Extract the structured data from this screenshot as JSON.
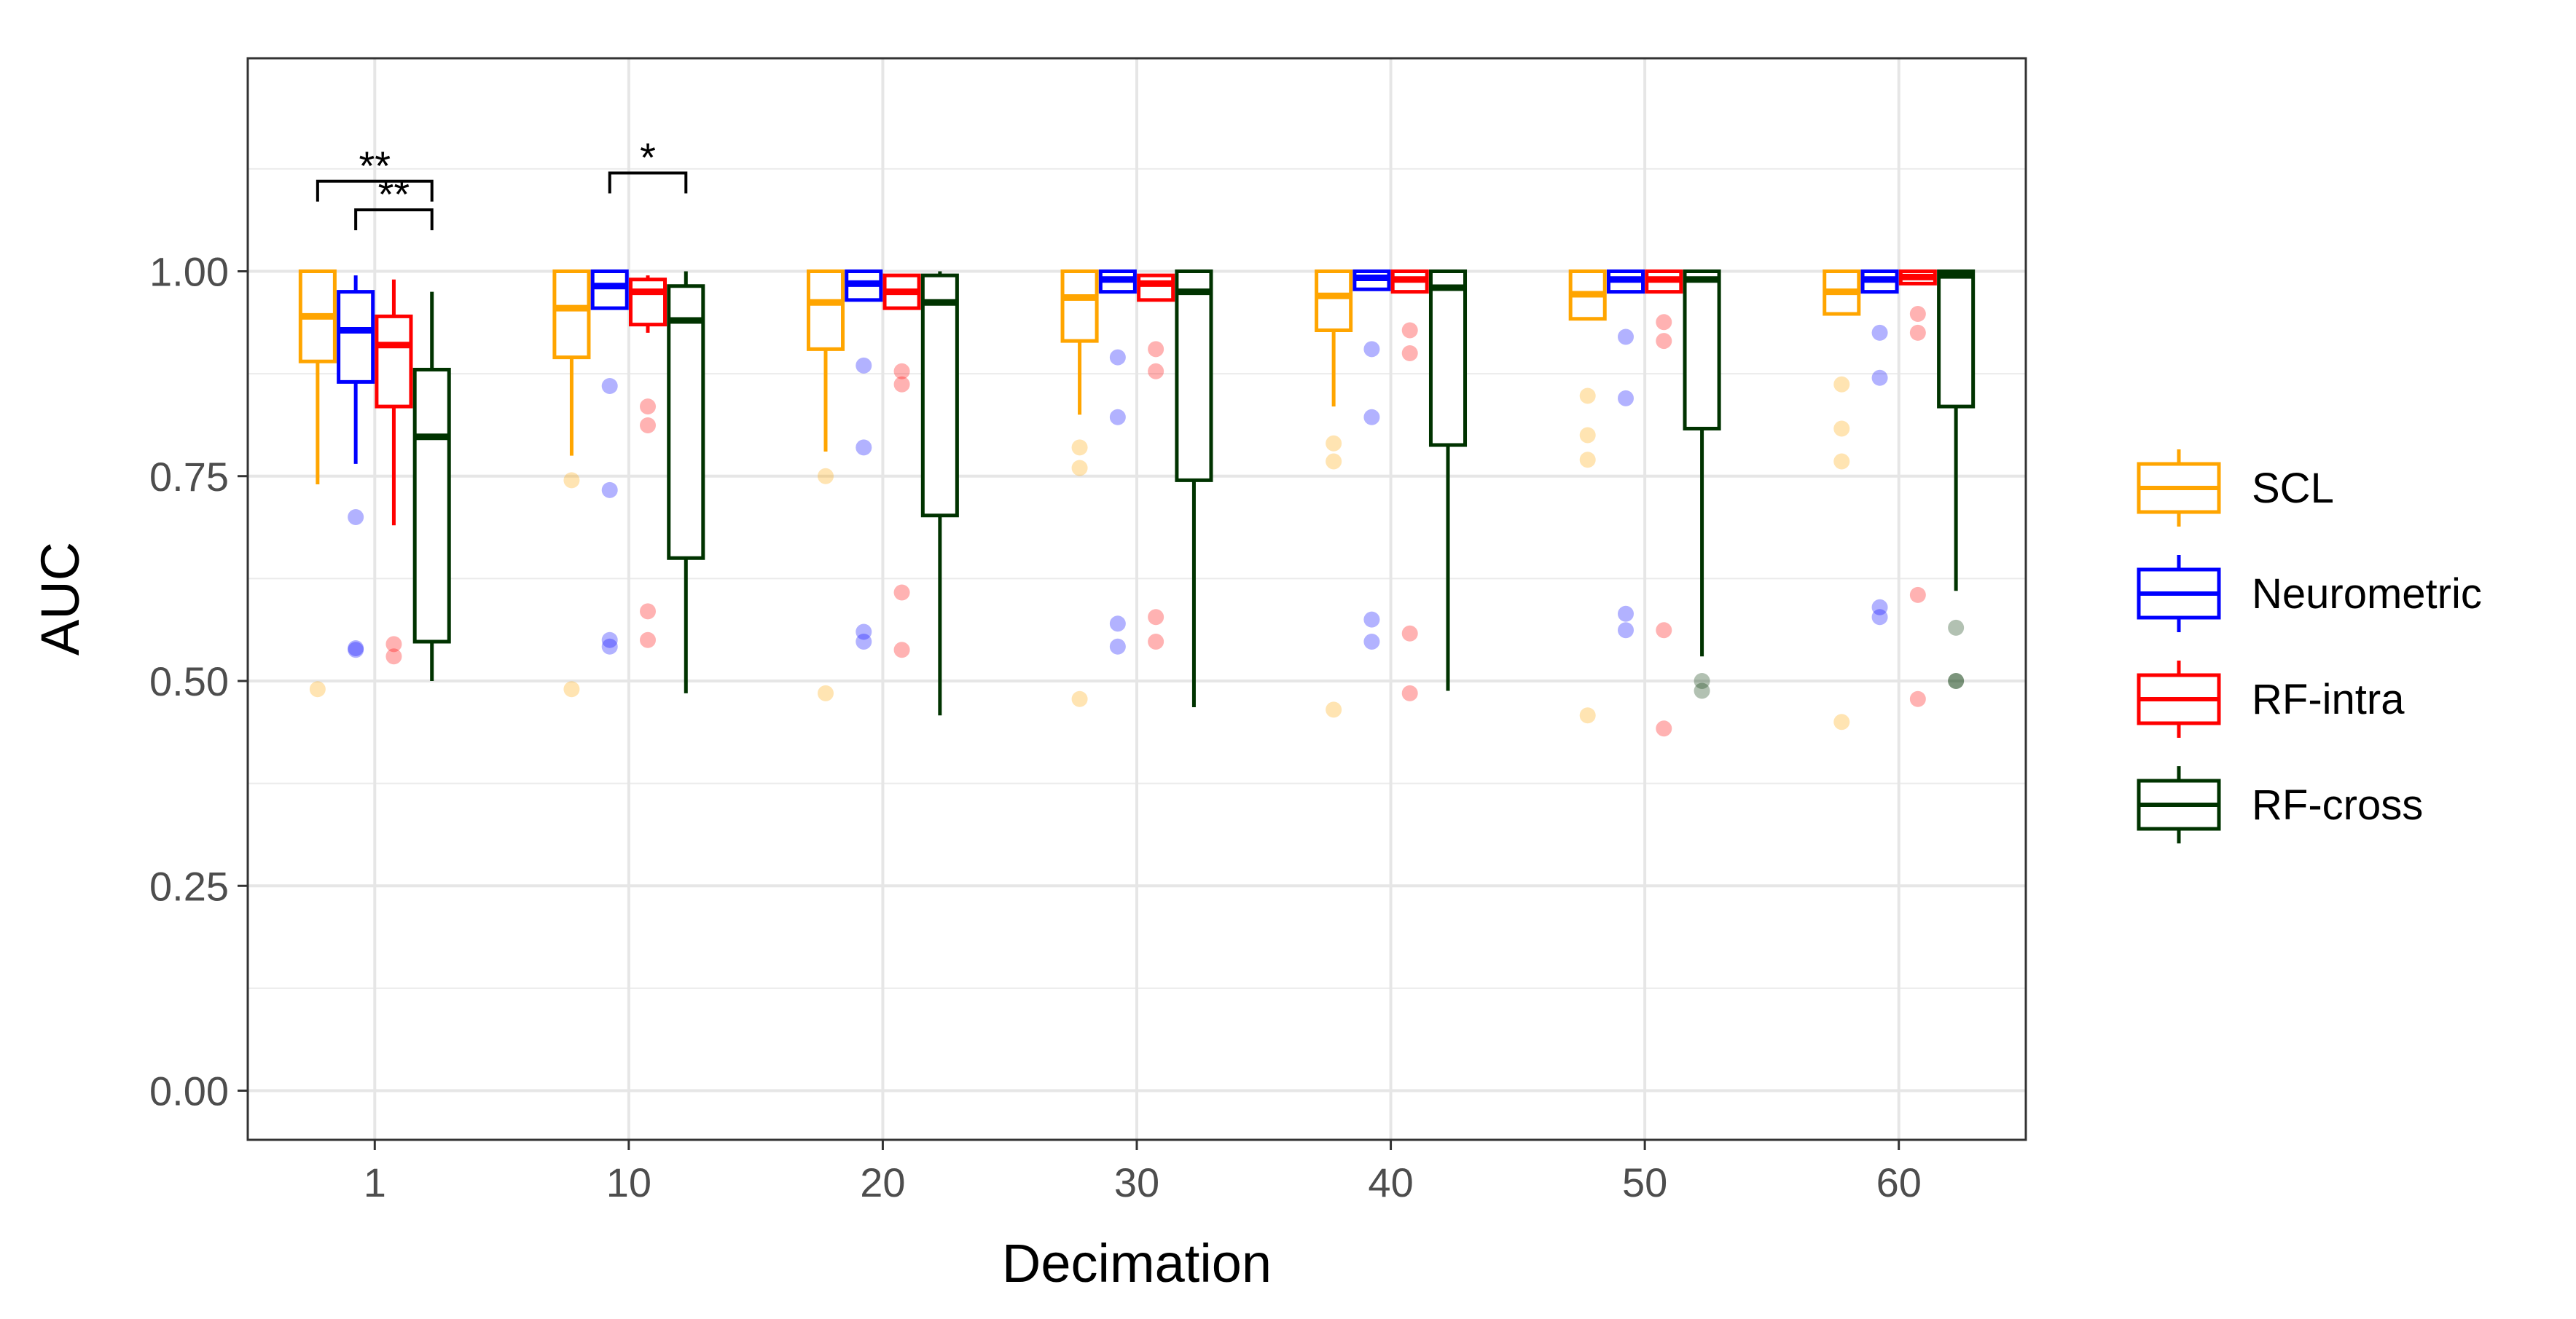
{
  "chart_data": {
    "type": "boxplot",
    "title": "",
    "xlabel": "Decimation",
    "ylabel": "AUC",
    "ylim": [
      -0.06,
      1.26
    ],
    "y_ticks": [
      0.0,
      0.25,
      0.5,
      0.75,
      1.0
    ],
    "y_tick_labels": [
      "0.00",
      "0.25",
      "0.50",
      "0.75",
      "1.00"
    ],
    "categories": [
      "1",
      "10",
      "20",
      "30",
      "40",
      "50",
      "60"
    ],
    "grid": true,
    "legend_position": "right",
    "series": [
      {
        "name": "SCL",
        "color": "#FFA500",
        "boxes": [
          {
            "q1": 0.89,
            "median": 0.945,
            "q3": 1.0,
            "whisker_low": 0.74,
            "whisker_high": 1.0,
            "outliers": [
              0.49
            ]
          },
          {
            "q1": 0.895,
            "median": 0.955,
            "q3": 1.0,
            "whisker_low": 0.775,
            "whisker_high": 1.0,
            "outliers": [
              0.745,
              0.49
            ]
          },
          {
            "q1": 0.905,
            "median": 0.962,
            "q3": 1.0,
            "whisker_low": 0.78,
            "whisker_high": 1.0,
            "outliers": [
              0.75,
              0.485
            ]
          },
          {
            "q1": 0.915,
            "median": 0.968,
            "q3": 1.0,
            "whisker_low": 0.825,
            "whisker_high": 1.0,
            "outliers": [
              0.785,
              0.76,
              0.478
            ]
          },
          {
            "q1": 0.928,
            "median": 0.97,
            "q3": 1.0,
            "whisker_low": 0.835,
            "whisker_high": 1.0,
            "outliers": [
              0.79,
              0.768,
              0.465
            ]
          },
          {
            "q1": 0.942,
            "median": 0.972,
            "q3": 1.0,
            "whisker_low": 0.942,
            "whisker_high": 1.0,
            "outliers": [
              0.848,
              0.8,
              0.77,
              0.458
            ]
          },
          {
            "q1": 0.948,
            "median": 0.975,
            "q3": 1.0,
            "whisker_low": 0.948,
            "whisker_high": 1.0,
            "outliers": [
              0.862,
              0.808,
              0.768,
              0.45
            ]
          }
        ]
      },
      {
        "name": "Neurometric",
        "color": "#0000FF",
        "boxes": [
          {
            "q1": 0.865,
            "median": 0.928,
            "q3": 0.975,
            "whisker_low": 0.765,
            "whisker_high": 0.995,
            "outliers": [
              0.7,
              0.54,
              0.538
            ]
          },
          {
            "q1": 0.955,
            "median": 0.982,
            "q3": 1.0,
            "whisker_low": 0.955,
            "whisker_high": 1.0,
            "outliers": [
              0.86,
              0.733,
              0.55,
              0.542
            ]
          },
          {
            "q1": 0.965,
            "median": 0.985,
            "q3": 1.0,
            "whisker_low": 0.965,
            "whisker_high": 1.0,
            "outliers": [
              0.885,
              0.785,
              0.56,
              0.548
            ]
          },
          {
            "q1": 0.975,
            "median": 0.99,
            "q3": 1.0,
            "whisker_low": 0.975,
            "whisker_high": 1.0,
            "outliers": [
              0.895,
              0.822,
              0.57,
              0.542
            ]
          },
          {
            "q1": 0.978,
            "median": 0.992,
            "q3": 1.0,
            "whisker_low": 0.978,
            "whisker_high": 1.0,
            "outliers": [
              0.905,
              0.822,
              0.575,
              0.548
            ]
          },
          {
            "q1": 0.975,
            "median": 0.99,
            "q3": 1.0,
            "whisker_low": 0.975,
            "whisker_high": 1.0,
            "outliers": [
              0.92,
              0.845,
              0.582,
              0.562
            ]
          },
          {
            "q1": 0.975,
            "median": 0.99,
            "q3": 1.0,
            "whisker_low": 0.975,
            "whisker_high": 1.0,
            "outliers": [
              0.925,
              0.87,
              0.59,
              0.578
            ]
          }
        ]
      },
      {
        "name": "RF-intra",
        "color": "#FF0000",
        "boxes": [
          {
            "q1": 0.835,
            "median": 0.91,
            "q3": 0.945,
            "whisker_low": 0.69,
            "whisker_high": 0.99,
            "outliers": [
              0.545,
              0.53
            ]
          },
          {
            "q1": 0.935,
            "median": 0.975,
            "q3": 0.99,
            "whisker_low": 0.925,
            "whisker_high": 0.995,
            "outliers": [
              0.835,
              0.812,
              0.585,
              0.55
            ]
          },
          {
            "q1": 0.955,
            "median": 0.975,
            "q3": 0.995,
            "whisker_low": 0.955,
            "whisker_high": 0.995,
            "outliers": [
              0.878,
              0.862,
              0.608,
              0.538
            ]
          },
          {
            "q1": 0.965,
            "median": 0.985,
            "q3": 0.995,
            "whisker_low": 0.965,
            "whisker_high": 0.995,
            "outliers": [
              0.905,
              0.878,
              0.578,
              0.548
            ]
          },
          {
            "q1": 0.975,
            "median": 0.99,
            "q3": 1.0,
            "whisker_low": 0.975,
            "whisker_high": 1.0,
            "outliers": [
              0.928,
              0.9,
              0.558,
              0.485
            ]
          },
          {
            "q1": 0.975,
            "median": 0.99,
            "q3": 1.0,
            "whisker_low": 0.975,
            "whisker_high": 1.0,
            "outliers": [
              0.938,
              0.915,
              0.562,
              0.442
            ]
          },
          {
            "q1": 0.985,
            "median": 0.993,
            "q3": 1.0,
            "whisker_low": 0.985,
            "whisker_high": 1.0,
            "outliers": [
              0.948,
              0.925,
              0.605,
              0.478
            ]
          }
        ]
      },
      {
        "name": "RF-cross",
        "color": "#003300",
        "boxes": [
          {
            "q1": 0.548,
            "median": 0.798,
            "q3": 0.88,
            "whisker_low": 0.5,
            "whisker_high": 0.975,
            "outliers": []
          },
          {
            "q1": 0.65,
            "median": 0.94,
            "q3": 0.982,
            "whisker_low": 0.485,
            "whisker_high": 1.0,
            "outliers": []
          },
          {
            "q1": 0.702,
            "median": 0.962,
            "q3": 0.995,
            "whisker_low": 0.458,
            "whisker_high": 1.0,
            "outliers": []
          },
          {
            "q1": 0.745,
            "median": 0.975,
            "q3": 1.0,
            "whisker_low": 0.468,
            "whisker_high": 1.0,
            "outliers": []
          },
          {
            "q1": 0.788,
            "median": 0.98,
            "q3": 1.0,
            "whisker_low": 0.488,
            "whisker_high": 1.0,
            "outliers": []
          },
          {
            "q1": 0.808,
            "median": 0.99,
            "q3": 1.0,
            "whisker_low": 0.53,
            "whisker_high": 1.0,
            "outliers": [
              0.5,
              0.488
            ]
          },
          {
            "q1": 0.835,
            "median": 0.995,
            "q3": 1.0,
            "whisker_low": 0.61,
            "whisker_high": 1.0,
            "outliers": [
              0.565,
              0.5,
              0.5
            ]
          }
        ]
      }
    ],
    "significance_brackets": [
      {
        "group": "1",
        "from_series": "SCL",
        "to_series": "RF-cross",
        "y": 1.11,
        "label": "**"
      },
      {
        "group": "1",
        "from_series": "Neurometric",
        "to_series": "RF-cross",
        "y": 1.075,
        "label": "**"
      },
      {
        "group": "10",
        "from_series": "Neurometric",
        "to_series": "RF-cross",
        "y": 1.12,
        "label": "*"
      }
    ]
  }
}
